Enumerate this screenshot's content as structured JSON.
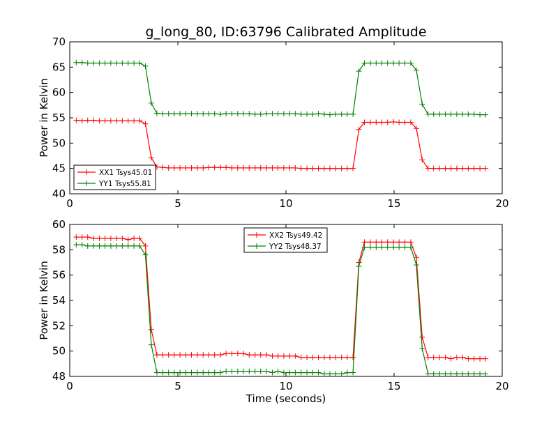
{
  "title": "g_long_80, ID:63796 Calibrated Amplitude",
  "chart_data": [
    {
      "type": "line",
      "xlabel": "",
      "ylabel": "Power in Kelvin",
      "xlim": [
        0,
        20
      ],
      "ylim": [
        40,
        70
      ],
      "xticks": [
        0,
        5,
        10,
        15,
        20
      ],
      "yticks": [
        40,
        45,
        50,
        55,
        60,
        65,
        70
      ],
      "legend_position": "lower-left",
      "series": [
        {
          "name": "XX1 Tsys45.01",
          "color": "#ff0000",
          "x": [
            0.3,
            0.57,
            0.83,
            1.1,
            1.37,
            1.63,
            1.9,
            2.17,
            2.43,
            2.7,
            2.97,
            3.23,
            3.5,
            3.77,
            4.03,
            4.3,
            4.57,
            4.83,
            5.1,
            5.37,
            5.63,
            5.9,
            6.17,
            6.43,
            6.7,
            6.97,
            7.23,
            7.5,
            7.77,
            8.03,
            8.3,
            8.57,
            8.83,
            9.1,
            9.37,
            9.63,
            9.9,
            10.17,
            10.43,
            10.7,
            10.97,
            11.23,
            11.5,
            11.77,
            12.03,
            12.3,
            12.57,
            12.83,
            13.1,
            13.37,
            13.63,
            13.9,
            14.17,
            14.43,
            14.7,
            14.97,
            15.23,
            15.5,
            15.77,
            16.03,
            16.3,
            16.57,
            16.83,
            17.1,
            17.37,
            17.63,
            17.9,
            18.17,
            18.43,
            18.7,
            18.97,
            19.23
          ],
          "y": [
            54.5,
            54.4,
            54.5,
            54.5,
            54.4,
            54.4,
            54.4,
            54.4,
            54.4,
            54.4,
            54.4,
            54.4,
            53.8,
            47.1,
            45.3,
            45.2,
            45.1,
            45.1,
            45.1,
            45.1,
            45.1,
            45.1,
            45.1,
            45.2,
            45.2,
            45.2,
            45.2,
            45.1,
            45.1,
            45.1,
            45.1,
            45.1,
            45.1,
            45.1,
            45.1,
            45.1,
            45.1,
            45.1,
            45.1,
            45.0,
            45.0,
            45.0,
            45.0,
            45.0,
            45.0,
            45.0,
            45.0,
            45.0,
            45.0,
            52.7,
            54.1,
            54.1,
            54.1,
            54.1,
            54.1,
            54.2,
            54.1,
            54.1,
            54.1,
            52.9,
            46.7,
            45.0,
            45.0,
            45.0,
            45.0,
            45.0,
            45.0,
            45.0,
            45.0,
            45.0,
            45.0,
            45.0
          ]
        },
        {
          "name": "YY1 Tsys55.81",
          "color": "#008000",
          "x": [
            0.3,
            0.57,
            0.83,
            1.1,
            1.37,
            1.63,
            1.9,
            2.17,
            2.43,
            2.7,
            2.97,
            3.23,
            3.5,
            3.77,
            4.03,
            4.3,
            4.57,
            4.83,
            5.1,
            5.37,
            5.63,
            5.9,
            6.17,
            6.43,
            6.7,
            6.97,
            7.23,
            7.5,
            7.77,
            8.03,
            8.3,
            8.57,
            8.83,
            9.1,
            9.37,
            9.63,
            9.9,
            10.17,
            10.43,
            10.7,
            10.97,
            11.23,
            11.5,
            11.77,
            12.03,
            12.3,
            12.57,
            12.83,
            13.1,
            13.37,
            13.63,
            13.9,
            14.17,
            14.43,
            14.7,
            14.97,
            15.23,
            15.5,
            15.77,
            16.03,
            16.3,
            16.57,
            16.83,
            17.1,
            17.37,
            17.63,
            17.9,
            18.17,
            18.43,
            18.7,
            18.97,
            19.23
          ],
          "y": [
            65.9,
            65.9,
            65.8,
            65.8,
            65.8,
            65.8,
            65.8,
            65.8,
            65.8,
            65.8,
            65.8,
            65.8,
            65.2,
            57.9,
            55.9,
            55.8,
            55.8,
            55.8,
            55.8,
            55.8,
            55.8,
            55.8,
            55.8,
            55.8,
            55.8,
            55.7,
            55.8,
            55.8,
            55.8,
            55.8,
            55.8,
            55.7,
            55.7,
            55.8,
            55.8,
            55.8,
            55.8,
            55.8,
            55.8,
            55.7,
            55.7,
            55.7,
            55.8,
            55.7,
            55.6,
            55.7,
            55.7,
            55.7,
            55.7,
            64.2,
            65.8,
            65.8,
            65.8,
            65.8,
            65.8,
            65.8,
            65.8,
            65.8,
            65.8,
            64.4,
            57.7,
            55.7,
            55.7,
            55.7,
            55.7,
            55.7,
            55.7,
            55.7,
            55.7,
            55.7,
            55.6,
            55.6
          ]
        }
      ]
    },
    {
      "type": "line",
      "xlabel": "Time (seconds)",
      "ylabel": "Power in Kelvin",
      "xlim": [
        0,
        20
      ],
      "ylim": [
        48,
        60
      ],
      "xticks": [
        0,
        5,
        10,
        15,
        20
      ],
      "yticks": [
        48,
        50,
        52,
        54,
        56,
        58,
        60
      ],
      "legend_position": "upper-center",
      "series": [
        {
          "name": "XX2 Tsys49.42",
          "color": "#ff0000",
          "x": [
            0.3,
            0.57,
            0.83,
            1.1,
            1.37,
            1.63,
            1.9,
            2.17,
            2.43,
            2.7,
            2.97,
            3.23,
            3.5,
            3.77,
            4.03,
            4.3,
            4.57,
            4.83,
            5.1,
            5.37,
            5.63,
            5.9,
            6.17,
            6.43,
            6.7,
            6.97,
            7.23,
            7.5,
            7.77,
            8.03,
            8.3,
            8.57,
            8.83,
            9.1,
            9.37,
            9.63,
            9.9,
            10.17,
            10.43,
            10.7,
            10.97,
            11.23,
            11.5,
            11.77,
            12.03,
            12.3,
            12.57,
            12.83,
            13.1,
            13.37,
            13.63,
            13.9,
            14.17,
            14.43,
            14.7,
            14.97,
            15.23,
            15.5,
            15.77,
            16.03,
            16.3,
            16.57,
            16.83,
            17.1,
            17.37,
            17.63,
            17.9,
            18.17,
            18.43,
            18.7,
            18.97,
            19.23
          ],
          "y": [
            59.0,
            59.0,
            59.0,
            58.9,
            58.9,
            58.9,
            58.9,
            58.9,
            58.9,
            58.8,
            58.9,
            58.9,
            58.3,
            51.7,
            49.7,
            49.7,
            49.7,
            49.7,
            49.7,
            49.7,
            49.7,
            49.7,
            49.7,
            49.7,
            49.7,
            49.7,
            49.8,
            49.8,
            49.8,
            49.8,
            49.7,
            49.7,
            49.7,
            49.7,
            49.6,
            49.6,
            49.6,
            49.6,
            49.6,
            49.5,
            49.5,
            49.5,
            49.5,
            49.5,
            49.5,
            49.5,
            49.5,
            49.5,
            49.5,
            57.0,
            58.6,
            58.6,
            58.6,
            58.6,
            58.6,
            58.6,
            58.6,
            58.6,
            58.6,
            57.4,
            51.1,
            49.5,
            49.5,
            49.5,
            49.5,
            49.4,
            49.5,
            49.5,
            49.4,
            49.4,
            49.4,
            49.4
          ]
        },
        {
          "name": "YY2 Tsys48.37",
          "color": "#008000",
          "x": [
            0.3,
            0.57,
            0.83,
            1.1,
            1.37,
            1.63,
            1.9,
            2.17,
            2.43,
            2.7,
            2.97,
            3.23,
            3.5,
            3.77,
            4.03,
            4.3,
            4.57,
            4.83,
            5.1,
            5.37,
            5.63,
            5.9,
            6.17,
            6.43,
            6.7,
            6.97,
            7.23,
            7.5,
            7.77,
            8.03,
            8.3,
            8.57,
            8.83,
            9.1,
            9.37,
            9.63,
            9.9,
            10.17,
            10.43,
            10.7,
            10.97,
            11.23,
            11.5,
            11.77,
            12.03,
            12.3,
            12.57,
            12.83,
            13.1,
            13.37,
            13.63,
            13.9,
            14.17,
            14.43,
            14.7,
            14.97,
            15.23,
            15.5,
            15.77,
            16.03,
            16.3,
            16.57,
            16.83,
            17.1,
            17.37,
            17.63,
            17.9,
            18.17,
            18.43,
            18.7,
            18.97,
            19.23
          ],
          "y": [
            58.4,
            58.4,
            58.3,
            58.3,
            58.3,
            58.3,
            58.3,
            58.3,
            58.3,
            58.3,
            58.3,
            58.3,
            57.6,
            50.5,
            48.3,
            48.3,
            48.3,
            48.3,
            48.3,
            48.3,
            48.3,
            48.3,
            48.3,
            48.3,
            48.3,
            48.3,
            48.4,
            48.4,
            48.4,
            48.4,
            48.4,
            48.4,
            48.4,
            48.4,
            48.3,
            48.4,
            48.3,
            48.3,
            48.3,
            48.3,
            48.3,
            48.3,
            48.3,
            48.2,
            48.2,
            48.2,
            48.2,
            48.3,
            48.3,
            56.7,
            58.2,
            58.2,
            58.2,
            58.2,
            58.2,
            58.2,
            58.2,
            58.2,
            58.2,
            56.8,
            50.2,
            48.2,
            48.2,
            48.2,
            48.2,
            48.2,
            48.2,
            48.2,
            48.2,
            48.2,
            48.2,
            48.2
          ]
        }
      ]
    }
  ]
}
